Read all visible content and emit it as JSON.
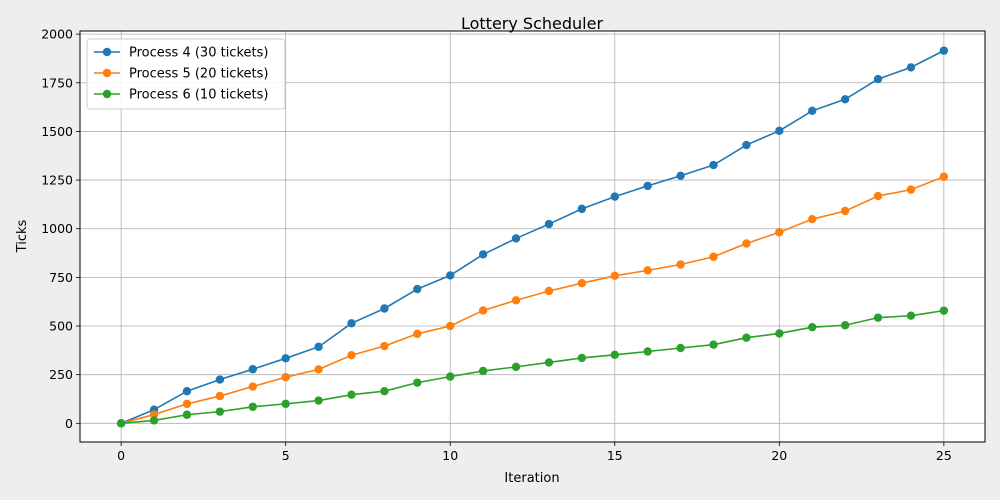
{
  "chart_data": {
    "type": "line",
    "title": "Lottery Scheduler",
    "xlabel": "Iteration",
    "ylabel": "Ticks",
    "xlim": [
      -1.25,
      26.25
    ],
    "ylim": [
      -96,
      2016
    ],
    "xticks": [
      0,
      5,
      10,
      15,
      20,
      25
    ],
    "yticks": [
      0,
      250,
      500,
      750,
      1000,
      1250,
      1500,
      1750,
      2000
    ],
    "grid": true,
    "legend_position": "top-left",
    "x": [
      0,
      1,
      2,
      3,
      4,
      5,
      6,
      7,
      8,
      9,
      10,
      11,
      12,
      13,
      14,
      15,
      16,
      17,
      18,
      19,
      20,
      21,
      22,
      23,
      24,
      25
    ],
    "series": [
      {
        "name": "Process 4 (30 tickets)",
        "color": "#1f77b4",
        "values": [
          0,
          70,
          165,
          225,
          278,
          334,
          393,
          514,
          590,
          690,
          760,
          868,
          950,
          1024,
          1102,
          1165,
          1220,
          1272,
          1327,
          1430,
          1503,
          1606,
          1665,
          1769,
          1829,
          1915
        ]
      },
      {
        "name": "Process 5 (20 tickets)",
        "color": "#ff7f0e",
        "values": [
          0,
          45,
          100,
          140,
          189,
          237,
          277,
          350,
          397,
          460,
          500,
          580,
          632,
          680,
          720,
          758,
          786,
          816,
          856,
          924,
          982,
          1049,
          1091,
          1168,
          1201,
          1267
        ]
      },
      {
        "name": "Process 6 (10 tickets)",
        "color": "#2ca02c",
        "values": [
          0,
          15,
          44,
          60,
          85,
          100,
          117,
          147,
          165,
          209,
          240,
          269,
          290,
          313,
          336,
          352,
          369,
          387,
          404,
          440,
          462,
          494,
          504,
          543,
          553,
          579
        ]
      }
    ]
  }
}
